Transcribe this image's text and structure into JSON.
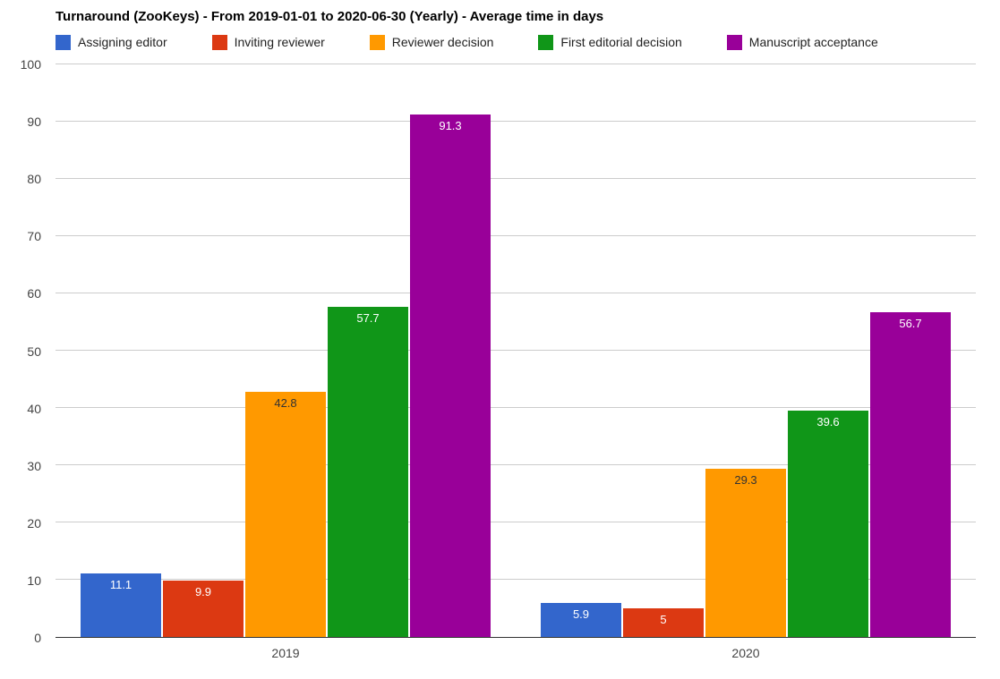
{
  "chart_data": {
    "type": "bar",
    "title": "Turnaround (ZooKeys) - From 2019-01-01 to 2020-06-30 (Yearly) - Average time in days",
    "categories": [
      "2019",
      "2020"
    ],
    "series": [
      {
        "name": "Assigning editor",
        "color": "#3366cc",
        "label_color": "#ffffff",
        "values": [
          11.1,
          5.9
        ]
      },
      {
        "name": "Inviting reviewer",
        "color": "#dc3912",
        "label_color": "#ffffff",
        "values": [
          9.9,
          5
        ]
      },
      {
        "name": "Reviewer decision",
        "color": "#ff9900",
        "label_color": "#333333",
        "values": [
          42.8,
          29.3
        ]
      },
      {
        "name": "First editorial decision",
        "color": "#109618",
        "label_color": "#ffffff",
        "values": [
          57.7,
          39.6
        ]
      },
      {
        "name": "Manuscript acceptance",
        "color": "#990099",
        "label_color": "#ffffff",
        "values": [
          91.3,
          56.7
        ]
      }
    ],
    "xlabel": "",
    "ylabel": "",
    "ylim": [
      0,
      100
    ],
    "yticks": [
      0,
      10,
      20,
      30,
      40,
      50,
      60,
      70,
      80,
      90,
      100
    ],
    "grid": true,
    "legend_position": "top",
    "axis_color": "#333333",
    "grid_color": "#cccccc",
    "tick_label_color": "#444444"
  }
}
